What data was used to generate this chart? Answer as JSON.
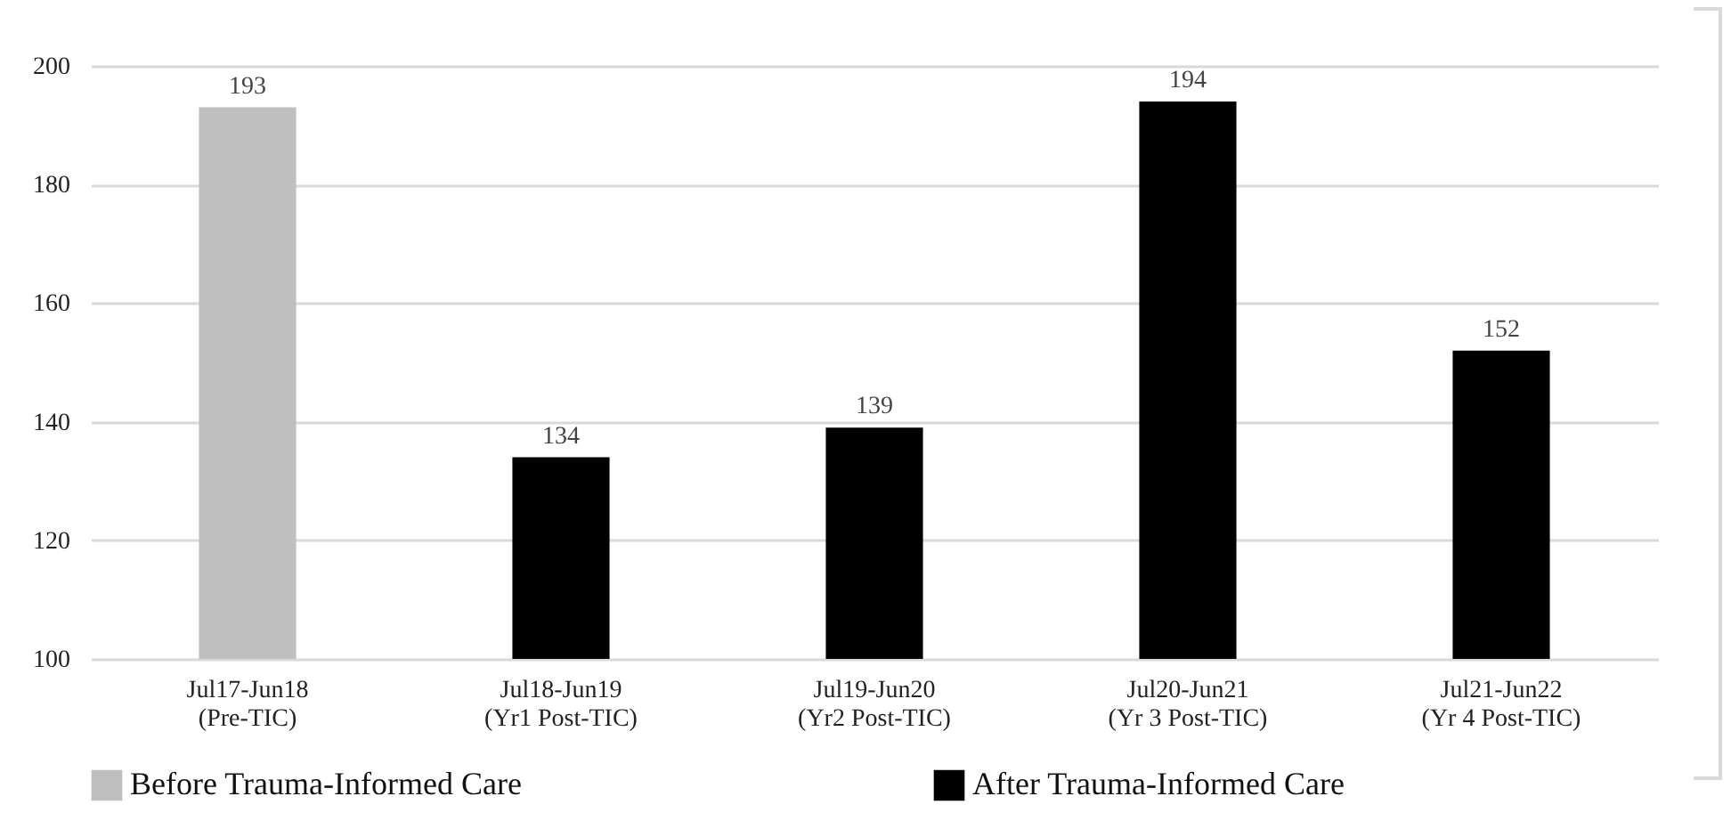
{
  "chart_data": {
    "type": "bar",
    "categories": [
      "Jul17-Jun18\n(Pre-TIC)",
      "Jul18-Jun19\n(Yr1 Post-TIC)",
      "Jul19-Jun20\n(Yr2 Post-TIC)",
      "Jul20-Jun21\n(Yr 3 Post-TIC)",
      "Jul21-Jun22\n(Yr 4 Post-TIC)"
    ],
    "series": [
      {
        "name": "Before Trauma-Informed Care",
        "color": "#bfbfbf",
        "values": [
          193,
          null,
          null,
          null,
          null
        ]
      },
      {
        "name": "After Trauma-Informed Care",
        "color": "#000000",
        "values": [
          null,
          134,
          139,
          194,
          152
        ]
      }
    ],
    "ylim": [
      100,
      200
    ],
    "yticks": [
      100,
      120,
      140,
      160,
      180,
      200
    ],
    "grid": "y",
    "legend": "bottom",
    "data_labels": true
  }
}
